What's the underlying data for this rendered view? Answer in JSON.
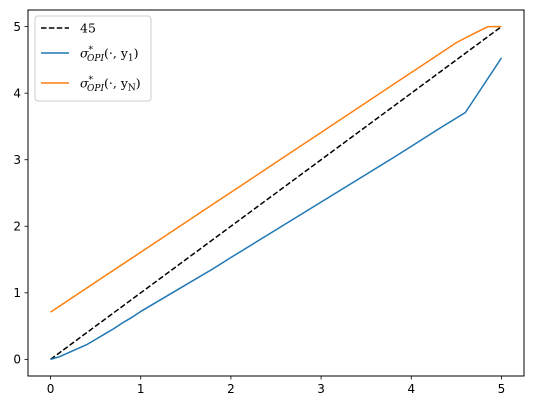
{
  "chart_data": {
    "type": "line",
    "title": "",
    "xlabel": "",
    "ylabel": "",
    "xlim": [
      -0.25,
      5.25
    ],
    "ylim": [
      -0.25,
      5.25
    ],
    "x_ticks": [
      "0",
      "1",
      "2",
      "3",
      "4",
      "5"
    ],
    "y_ticks": [
      "0",
      "1",
      "2",
      "3",
      "4",
      "5"
    ],
    "grid": false,
    "legend_position": "upper left",
    "series": [
      {
        "name": "45",
        "color": "#000000",
        "dash": "dashed",
        "x": [
          0,
          5
        ],
        "y": [
          0,
          5
        ]
      },
      {
        "name": "σ*OPI(·, y1)",
        "name_parts": {
          "sym": "σ",
          "sup": "*",
          "sub": "OPI",
          "args": "(·, y",
          "argsub": "1",
          "close": ")"
        },
        "color": "#1f77b4",
        "dash": "solid",
        "x": [
          0,
          0.05,
          0.1,
          0.2,
          0.3,
          0.4,
          0.5,
          0.6,
          0.7,
          0.8,
          0.9,
          1.0,
          1.2,
          1.5,
          1.8,
          2.0,
          2.3,
          2.6,
          2.9,
          3.2,
          3.5,
          3.8,
          4.0,
          4.3,
          4.6,
          5.0
        ],
        "y": [
          0.0,
          0.02,
          0.04,
          0.1,
          0.16,
          0.22,
          0.3,
          0.38,
          0.46,
          0.55,
          0.63,
          0.72,
          0.88,
          1.12,
          1.36,
          1.53,
          1.78,
          2.03,
          2.28,
          2.53,
          2.78,
          3.03,
          3.2,
          3.46,
          3.71,
          4.53
        ]
      },
      {
        "name": "σ*OPI(·, yN)",
        "name_parts": {
          "sym": "σ",
          "sup": "*",
          "sub": "OPI",
          "args": "(·, y",
          "argsub": "N",
          "close": ")"
        },
        "color": "#ff7f0e",
        "dash": "solid",
        "x": [
          0,
          0.3,
          0.6,
          0.9,
          1.2,
          1.5,
          1.8,
          2.1,
          2.4,
          2.7,
          3.0,
          3.3,
          3.6,
          3.9,
          4.2,
          4.5,
          4.7,
          4.85,
          5.0
        ],
        "y": [
          0.71,
          0.98,
          1.25,
          1.52,
          1.79,
          2.06,
          2.33,
          2.6,
          2.87,
          3.14,
          3.41,
          3.68,
          3.95,
          4.22,
          4.49,
          4.76,
          4.9,
          5.0,
          5.0
        ]
      }
    ]
  }
}
